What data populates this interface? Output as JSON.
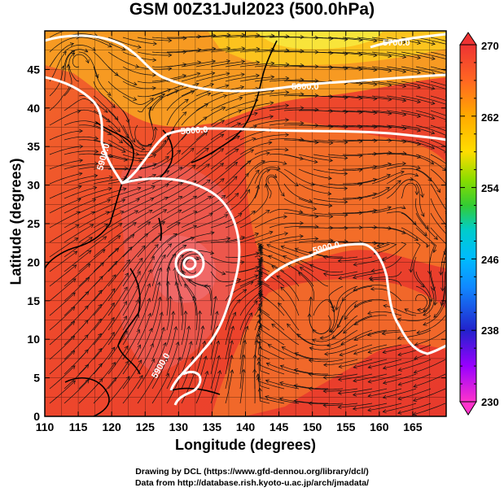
{
  "title": "GSM 00Z31Jul2023 (500.0hPa)",
  "xaxis": {
    "label": "Longitude (degrees)",
    "ticks": [
      "110",
      "115",
      "120",
      "125",
      "130",
      "135",
      "140",
      "145",
      "150",
      "155",
      "160",
      "165"
    ],
    "range": [
      110,
      170
    ]
  },
  "yaxis": {
    "label": "Latitude  (degrees)",
    "ticks": [
      "0",
      "5",
      "10",
      "15",
      "20",
      "25",
      "30",
      "35",
      "40",
      "45"
    ],
    "range": [
      0,
      50
    ]
  },
  "colorbar": {
    "labels": [
      "270",
      "262",
      "254",
      "246",
      "238",
      "230"
    ],
    "range": [
      230,
      270
    ],
    "colors": [
      "#ff33cc",
      "#9900ff",
      "#2222cc",
      "#00aaff",
      "#00cccc",
      "#66dd00",
      "#ffcc00",
      "#ff9900",
      "#ff5522",
      "#ee3333"
    ]
  },
  "contours": {
    "labels": [
      "5700.0",
      "5800.0",
      "5800.0",
      "5900.0",
      "5900.0",
      "5900.0"
    ],
    "color": "#ffffff"
  },
  "credits": {
    "line1": "Drawing by DCL (https://www.gfd-dennou.org/library/dcl/)",
    "line2": "Data from http://database.rish.kyoto-u.ac.jp/arch/jmadata/"
  }
}
